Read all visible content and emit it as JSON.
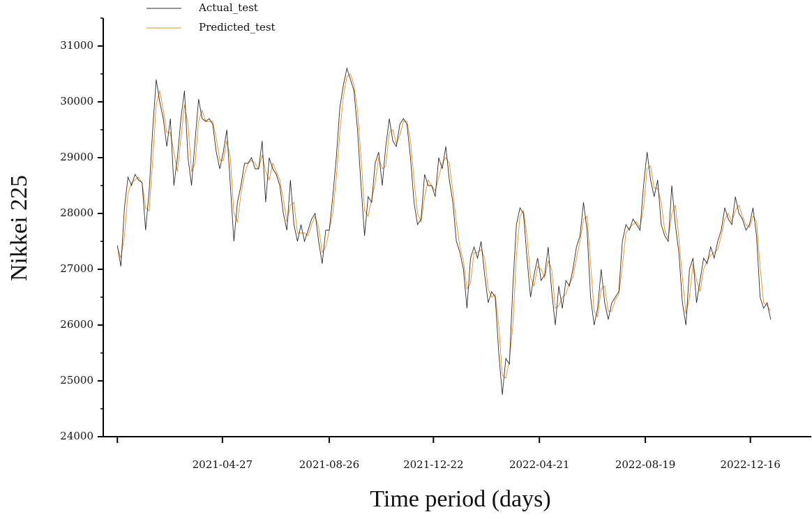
{
  "chart_data": {
    "type": "line",
    "ylabel": "Nikkei 225",
    "xlabel": "Time period (days)",
    "xlim": [
      "2020-12-13",
      "2023-02-23"
    ],
    "xticks": [
      {
        "value": "2020-12-29",
        "label": null
      },
      "2021-04-27",
      "2021-08-26",
      "2021-12-22",
      "2022-04-21",
      "2022-08-19",
      "2022-12-16"
    ],
    "ylim": [
      24000,
      31500
    ],
    "yticks": [
      24000,
      25000,
      26000,
      27000,
      28000,
      29000,
      30000,
      31000
    ],
    "yminorticks": [
      24500,
      25500,
      26500,
      27500,
      28500,
      29500,
      30500,
      31500
    ],
    "legend": "top-left",
    "grid": false,
    "x": [
      "2020-12-29",
      "2021-01-02",
      "2021-01-06",
      "2021-01-10",
      "2021-01-14",
      "2021-01-18",
      "2021-01-22",
      "2021-01-26",
      "2021-01-30",
      "2021-02-03",
      "2021-02-07",
      "2021-02-11",
      "2021-02-15",
      "2021-02-19",
      "2021-02-23",
      "2021-02-27",
      "2021-03-03",
      "2021-03-07",
      "2021-03-11",
      "2021-03-15",
      "2021-03-19",
      "2021-03-23",
      "2021-03-27",
      "2021-03-31",
      "2021-04-04",
      "2021-04-08",
      "2021-04-12",
      "2021-04-16",
      "2021-04-20",
      "2021-04-24",
      "2021-04-28",
      "2021-05-02",
      "2021-05-06",
      "2021-05-10",
      "2021-05-14",
      "2021-05-18",
      "2021-05-22",
      "2021-05-26",
      "2021-05-30",
      "2021-06-03",
      "2021-06-07",
      "2021-06-11",
      "2021-06-15",
      "2021-06-19",
      "2021-06-23",
      "2021-06-27",
      "2021-07-01",
      "2021-07-05",
      "2021-07-09",
      "2021-07-13",
      "2021-07-17",
      "2021-07-21",
      "2021-07-25",
      "2021-07-29",
      "2021-08-02",
      "2021-08-06",
      "2021-08-10",
      "2021-08-14",
      "2021-08-18",
      "2021-08-22",
      "2021-08-26",
      "2021-08-30",
      "2021-09-03",
      "2021-09-07",
      "2021-09-11",
      "2021-09-15",
      "2021-09-19",
      "2021-09-23",
      "2021-09-27",
      "2021-10-01",
      "2021-10-05",
      "2021-10-09",
      "2021-10-13",
      "2021-10-17",
      "2021-10-21",
      "2021-10-25",
      "2021-10-29",
      "2021-11-02",
      "2021-11-06",
      "2021-11-10",
      "2021-11-14",
      "2021-11-18",
      "2021-11-22",
      "2021-11-26",
      "2021-11-30",
      "2021-12-04",
      "2021-12-08",
      "2021-12-12",
      "2021-12-16",
      "2021-12-20",
      "2021-12-24",
      "2021-12-28",
      "2022-01-01",
      "2022-01-05",
      "2022-01-09",
      "2022-01-13",
      "2022-01-17",
      "2022-01-21",
      "2022-01-25",
      "2022-01-29",
      "2022-02-02",
      "2022-02-06",
      "2022-02-10",
      "2022-02-14",
      "2022-02-18",
      "2022-02-22",
      "2022-02-26",
      "2022-03-02",
      "2022-03-06",
      "2022-03-10",
      "2022-03-14",
      "2022-03-18",
      "2022-03-22",
      "2022-03-26",
      "2022-03-30",
      "2022-04-03",
      "2022-04-07",
      "2022-04-11",
      "2022-04-15",
      "2022-04-19",
      "2022-04-23",
      "2022-04-27",
      "2022-05-01",
      "2022-05-05",
      "2022-05-09",
      "2022-05-13",
      "2022-05-17",
      "2022-05-21",
      "2022-05-25",
      "2022-05-29",
      "2022-06-02",
      "2022-06-06",
      "2022-06-10",
      "2022-06-14",
      "2022-06-18",
      "2022-06-22",
      "2022-06-26",
      "2022-06-30",
      "2022-07-04",
      "2022-07-08",
      "2022-07-12",
      "2022-07-16",
      "2022-07-20",
      "2022-07-24",
      "2022-07-28",
      "2022-08-01",
      "2022-08-05",
      "2022-08-09",
      "2022-08-13",
      "2022-08-17",
      "2022-08-21",
      "2022-08-25",
      "2022-08-29",
      "2022-09-02",
      "2022-09-06",
      "2022-09-10",
      "2022-09-14",
      "2022-09-18",
      "2022-09-22",
      "2022-09-26",
      "2022-09-30",
      "2022-10-04",
      "2022-10-08",
      "2022-10-12",
      "2022-10-16",
      "2022-10-20",
      "2022-10-24",
      "2022-10-28",
      "2022-11-01",
      "2022-11-05",
      "2022-11-09",
      "2022-11-13",
      "2022-11-17",
      "2022-11-21",
      "2022-11-25",
      "2022-11-29",
      "2022-12-03",
      "2022-12-07",
      "2022-12-11",
      "2022-12-15",
      "2022-12-19",
      "2022-12-23",
      "2022-12-27",
      "2022-12-31",
      "2023-01-04",
      "2023-01-08"
    ],
    "series": [
      {
        "name": "Actual_test",
        "color": "#2b2b2b",
        "values": [
          27430,
          27050,
          28100,
          28650,
          28500,
          28700,
          28600,
          28550,
          27700,
          28400,
          29500,
          30400,
          30000,
          29700,
          29200,
          29700,
          28500,
          29000,
          29700,
          30200,
          29000,
          28500,
          29300,
          30050,
          29700,
          29650,
          29700,
          29600,
          29100,
          28800,
          29100,
          29500,
          28500,
          27500,
          28200,
          28500,
          28900,
          28900,
          29000,
          28800,
          28800,
          29300,
          28200,
          29000,
          28800,
          28700,
          28500,
          28000,
          27700,
          28600,
          27800,
          27500,
          27800,
          27500,
          27700,
          27900,
          28000,
          27500,
          27100,
          27700,
          27700,
          28300,
          29000,
          29900,
          30300,
          30600,
          30400,
          30200,
          29500,
          28500,
          27600,
          28300,
          28200,
          28900,
          29100,
          28500,
          29200,
          29700,
          29300,
          29200,
          29600,
          29700,
          29600,
          29000,
          28200,
          27800,
          27900,
          28700,
          28500,
          28500,
          28300,
          29000,
          28800,
          29200,
          28600,
          28200,
          27500,
          27300,
          27000,
          26300,
          27200,
          27400,
          27200,
          27500,
          26900,
          26400,
          26600,
          26500,
          25500,
          24750,
          25400,
          25300,
          26700,
          27800,
          28100,
          28000,
          27200,
          26500,
          26900,
          27200,
          26800,
          26900,
          27400,
          26600,
          26000,
          26700,
          26300,
          26800,
          26700,
          27000,
          27400,
          27600,
          28200,
          27700,
          26500,
          26000,
          26300,
          27000,
          26400,
          26100,
          26400,
          26500,
          26600,
          27500,
          27800,
          27700,
          27900,
          27800,
          27700,
          28500,
          29100,
          28600,
          28300,
          28600,
          27800,
          27600,
          27500,
          28500,
          27800,
          27300,
          26400,
          26000,
          27000,
          27200,
          26400,
          26800,
          27200,
          27100,
          27400,
          27200,
          27500,
          27700,
          28100,
          27900,
          27800,
          28300,
          28000,
          27900,
          27700,
          27800,
          28100,
          27600,
          26500,
          26300,
          26400,
          26100
        ]
      },
      {
        "name": "Predicted_test",
        "color": "#f08a1c",
        "values": [
          27400,
          27200,
          27600,
          28350,
          28550,
          28600,
          28650,
          28550,
          28100,
          28050,
          28950,
          29950,
          30200,
          29850,
          29450,
          29450,
          29100,
          28750,
          29350,
          29950,
          29600,
          28750,
          28900,
          29650,
          29850,
          29650,
          29650,
          29650,
          29350,
          28950,
          28950,
          29300,
          29000,
          28000,
          27850,
          28350,
          28700,
          28900,
          28950,
          28900,
          28800,
          29050,
          28750,
          28600,
          28900,
          28750,
          28600,
          28250,
          27850,
          28150,
          28200,
          27650,
          27650,
          27650,
          27600,
          27800,
          27950,
          27750,
          27300,
          27400,
          27700,
          28000,
          28650,
          29450,
          30100,
          30450,
          30500,
          30300,
          29850,
          29000,
          28050,
          27950,
          28250,
          28550,
          29000,
          28800,
          28850,
          29450,
          29500,
          29250,
          29400,
          29650,
          29650,
          29300,
          28600,
          28000,
          27850,
          28300,
          28600,
          28500,
          28400,
          28650,
          28900,
          29000,
          28900,
          28400,
          27850,
          27400,
          27150,
          26650,
          26750,
          27300,
          27300,
          27350,
          27200,
          26650,
          26500,
          26550,
          26000,
          25100,
          25050,
          25350,
          26000,
          27250,
          27950,
          28050,
          27600,
          26850,
          26700,
          27050,
          27000,
          26850,
          27150,
          27000,
          26300,
          26350,
          26500,
          26550,
          26750,
          26850,
          27200,
          27500,
          27900,
          27950,
          27100,
          26250,
          26150,
          26650,
          26700,
          26250,
          26250,
          26450,
          26550,
          27050,
          27650,
          27750,
          27800,
          27850,
          27750,
          28100,
          28800,
          28850,
          28450,
          28450,
          28200,
          27700,
          27550,
          28000,
          28150,
          27550,
          26850,
          26200,
          26500,
          27100,
          26800,
          26600,
          27000,
          27150,
          27250,
          27300,
          27350,
          27600,
          27900,
          28000,
          27850,
          28050,
          28150,
          27950,
          27800,
          27750,
          27950,
          27850,
          27050,
          26400,
          26350,
          26250
        ]
      }
    ]
  }
}
